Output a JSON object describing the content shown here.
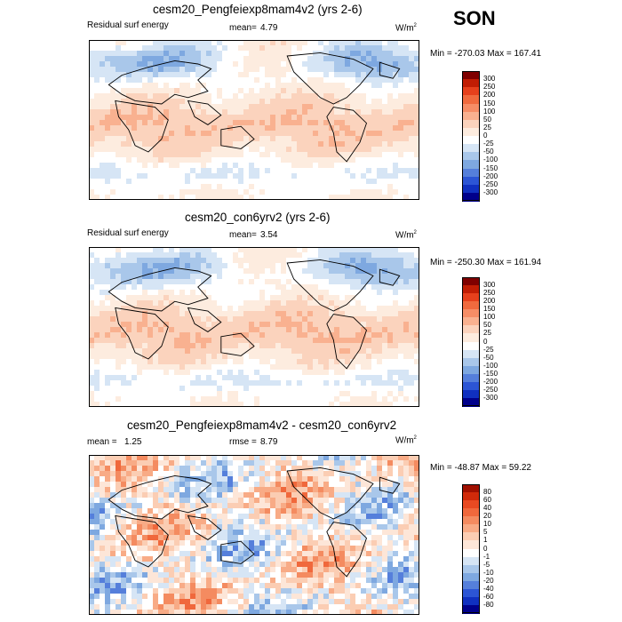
{
  "season": "SON",
  "panels": [
    {
      "title": "cesm20_Pengfeiexp8mam4v2 (yrs 2-6)",
      "left_label": "Residual surf energy",
      "mean_label": "mean=",
      "mean_value": "4.79",
      "units": "W/m",
      "units_sup": "2",
      "minmax": "Min = -270.03 Max = 167.41"
    },
    {
      "title": "cesm20_con6yrv2 (yrs 2-6)",
      "left_label": "Residual surf energy",
      "mean_label": "mean=",
      "mean_value": "3.54",
      "units": "W/m",
      "units_sup": "2",
      "minmax": "Min = -250.30 Max = 161.94"
    },
    {
      "title": "cesm20_Pengfeiexp8mam4v2 - cesm20_con6yrv2",
      "left_label": "mean =",
      "left_value": "1.25",
      "mean_label": "rmse =",
      "mean_value": "8.79",
      "units": "W/m",
      "units_sup": "2",
      "minmax": "Min = -48.87 Max = 59.22"
    }
  ],
  "chart_data": [
    {
      "type": "heatmap",
      "title": "cesm20_Pengfeiexp8mam4v2 (yrs 2-6)",
      "variable": "Residual surf energy",
      "units": "W/m2",
      "mean": 4.79,
      "min": -270.03,
      "max": 167.41,
      "colorbar_levels": [
        300,
        250,
        200,
        150,
        100,
        50,
        25,
        0,
        -25,
        -50,
        -100,
        -150,
        -200,
        -250,
        -300
      ],
      "colorbar_colors": [
        "#7f0000",
        "#c11d04",
        "#e6401c",
        "#f06a3e",
        "#f68d66",
        "#f9b190",
        "#fbd3bd",
        "#fdecdf",
        "#ffffff",
        "#d6e5f5",
        "#a9c7ea",
        "#7ea8e0",
        "#557fdb",
        "#2c55d5",
        "#1030c0",
        "#00008b"
      ]
    },
    {
      "type": "heatmap",
      "title": "cesm20_con6yrv2 (yrs 2-6)",
      "variable": "Residual surf energy",
      "units": "W/m2",
      "mean": 3.54,
      "min": -250.3,
      "max": 161.94,
      "colorbar_levels": [
        300,
        250,
        200,
        150,
        100,
        50,
        25,
        0,
        -25,
        -50,
        -100,
        -150,
        -200,
        -250,
        -300
      ],
      "colorbar_colors": [
        "#7f0000",
        "#c11d04",
        "#e6401c",
        "#f06a3e",
        "#f68d66",
        "#f9b190",
        "#fbd3bd",
        "#fdecdf",
        "#ffffff",
        "#d6e5f5",
        "#a9c7ea",
        "#7ea8e0",
        "#557fdb",
        "#2c55d5",
        "#1030c0",
        "#00008b"
      ]
    },
    {
      "type": "heatmap",
      "title": "cesm20_Pengfeiexp8mam4v2 - cesm20_con6yrv2",
      "units": "W/m2",
      "mean": 1.25,
      "rmse": 8.79,
      "min": -48.87,
      "max": 59.22,
      "colorbar_levels": [
        80,
        60,
        40,
        20,
        10,
        5,
        1,
        0,
        -1,
        -5,
        -10,
        -20,
        -40,
        -60,
        -80
      ],
      "colorbar_colors": [
        "#a01000",
        "#d02a0a",
        "#e84a22",
        "#f0683c",
        "#f48b60",
        "#f8ab86",
        "#fbcdb3",
        "#fde6d8",
        "#ffffff",
        "#d6e5f5",
        "#a9c7ea",
        "#7ea8e0",
        "#557fdb",
        "#2c55d5",
        "#1030c0",
        "#00008b"
      ]
    }
  ]
}
